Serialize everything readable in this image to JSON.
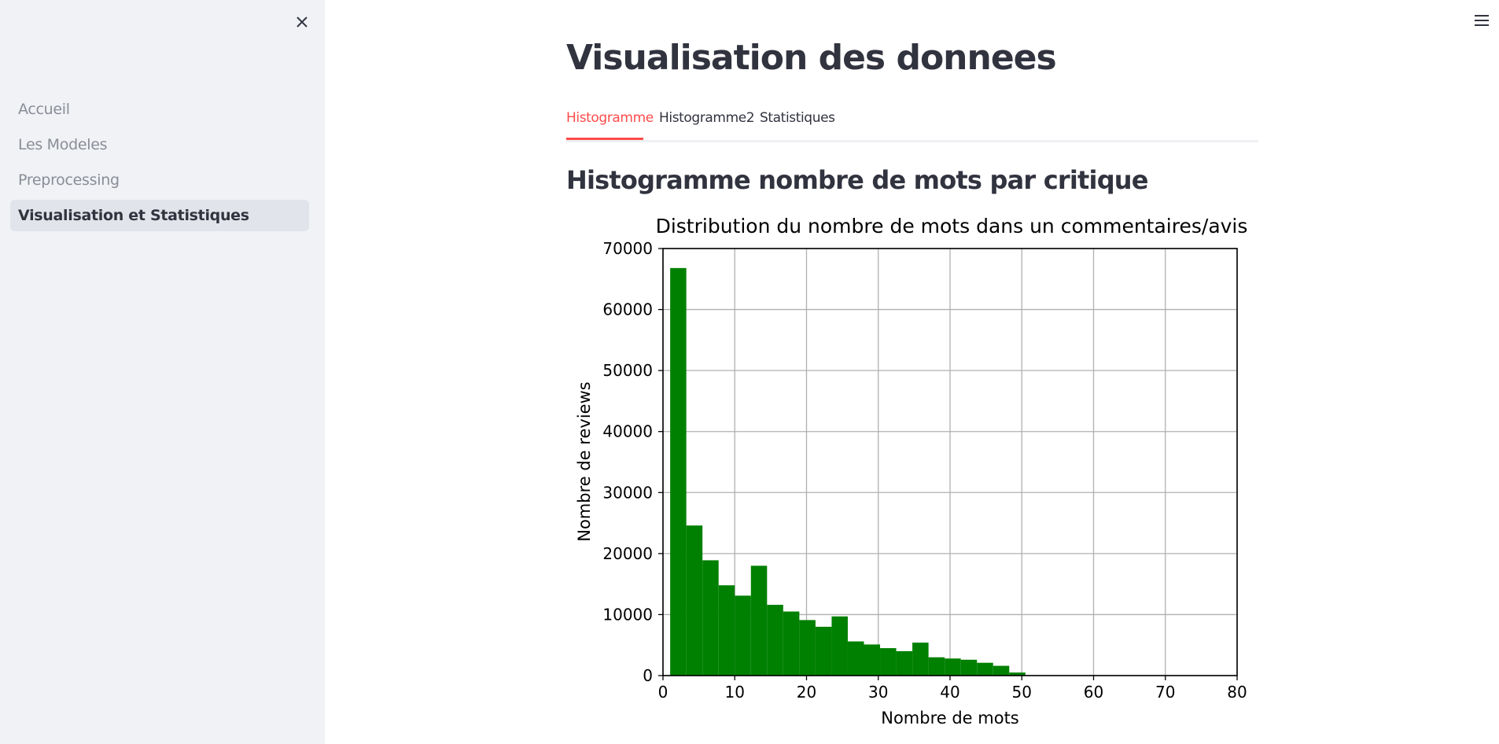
{
  "sidebar": {
    "close_icon": "close-icon",
    "items": [
      {
        "label": "Accueil",
        "active": false
      },
      {
        "label": "Les Modeles",
        "active": false
      },
      {
        "label": "Preprocessing",
        "active": false
      },
      {
        "label": "Visualisation et Statistiques",
        "active": true
      }
    ]
  },
  "header": {
    "menu_icon": "hamburger-menu-icon"
  },
  "main": {
    "title": "Visualisation des donnees",
    "tabs": [
      {
        "label": "Histogramme",
        "active": true
      },
      {
        "label": "Histogramme2",
        "active": false
      },
      {
        "label": "Statistiques",
        "active": false
      }
    ],
    "section_title": "Histogramme nombre de mots par critique"
  },
  "colors": {
    "accent": "#ff4b4b",
    "bar": "#008000",
    "sidebar_bg": "#f0f2f6"
  },
  "chart_data": {
    "type": "bar",
    "title": "Distribution du nombre de mots dans un commentaires/avis",
    "xlabel": "Nombre de mots",
    "ylabel": "Nombre de reviews",
    "xlim": [
      0,
      80
    ],
    "ylim": [
      0,
      70000
    ],
    "xticks": [
      0,
      10,
      20,
      30,
      40,
      50,
      60,
      70,
      80
    ],
    "yticks": [
      0,
      10000,
      20000,
      30000,
      40000,
      50000,
      60000,
      70000
    ],
    "grid": true,
    "bin_edges": [
      1,
      3.25,
      5.5,
      7.75,
      10,
      12.25,
      14.5,
      16.75,
      19,
      21.25,
      23.5,
      25.75,
      28,
      30.25,
      32.5,
      34.75,
      37,
      39.25,
      41.5,
      43.75,
      46,
      48.25,
      50.5
    ],
    "values": [
      66800,
      24600,
      18900,
      14800,
      13100,
      18000,
      11600,
      10500,
      9100,
      8000,
      9700,
      5600,
      5100,
      4500,
      4000,
      5400,
      3000,
      2800,
      2600,
      2100,
      1600,
      500
    ]
  }
}
